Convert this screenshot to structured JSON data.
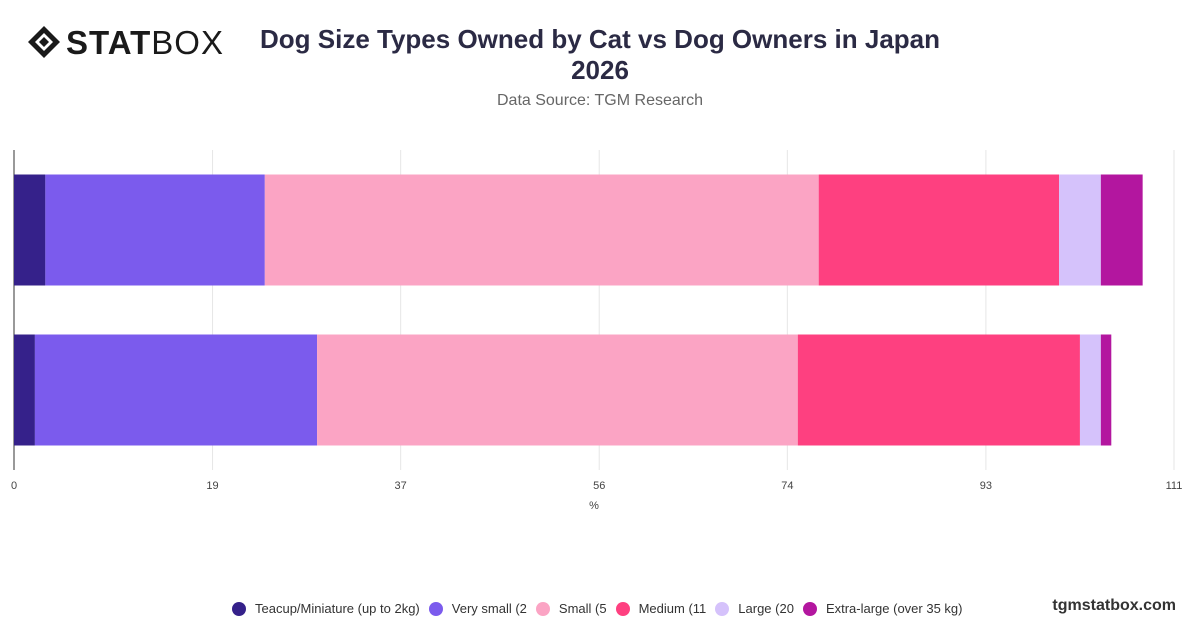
{
  "brand": {
    "logo_bold": "STAT",
    "logo_thin": "BOX",
    "website": "tgmstatbox.com"
  },
  "chart_data": {
    "type": "bar",
    "orientation": "horizontal",
    "stacked": true,
    "title": "Dog Size Types Owned by Cat vs Dog Owners in Japan 2026",
    "subtitle": "Data Source: TGM Research",
    "xlabel": "%",
    "ylabel": "",
    "xlim": [
      0,
      111
    ],
    "xticks": [
      "0",
      "19",
      "37",
      "56",
      "74",
      "93",
      "111"
    ],
    "categories": [
      "",
      ""
    ],
    "series": [
      {
        "name": "Teacup/Miniature (up to 2kg)",
        "color": "#35218a",
        "values": [
          3,
          2
        ]
      },
      {
        "name": "Very small (2",
        "color": "#7b5bed",
        "values": [
          21,
          27
        ]
      },
      {
        "name": "Small (5",
        "color": "#fba4c4",
        "values": [
          53,
          46
        ]
      },
      {
        "name": "Medium (11",
        "color": "#fe4080",
        "values": [
          23,
          27
        ]
      },
      {
        "name": "Large (20",
        "color": "#d5c2fb",
        "values": [
          4,
          2
        ]
      },
      {
        "name": "Extra-large (over 35 kg)",
        "color": "#b3169f",
        "values": [
          4,
          1
        ]
      }
    ],
    "grid": true,
    "legend_position": "bottom"
  }
}
